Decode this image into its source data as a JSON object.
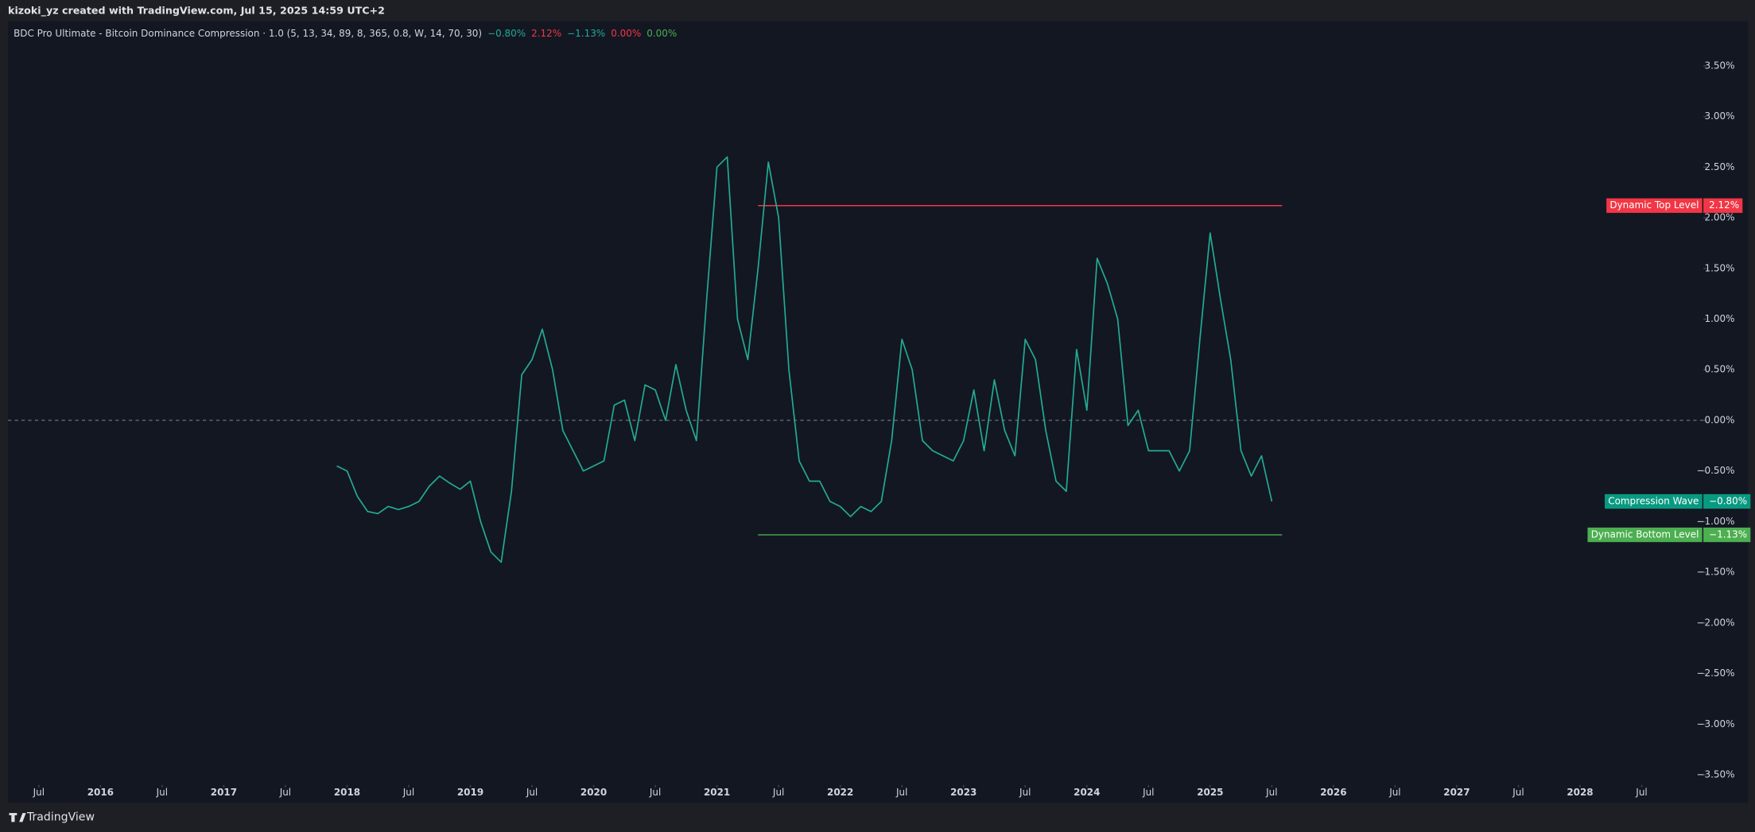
{
  "header": {
    "title": "kizoki_yz created with TradingView.com, Jul 15, 2025 14:59 UTC+2"
  },
  "footer": {
    "brand": "TradingView"
  },
  "chart_data": {
    "type": "line",
    "indicator": "BDC Pro Ultimate - Bitcoin Dominance Compression · 1.0 (5, 13, 34, 89, 8, 365, 0.8, W, 14, 70, 30)",
    "indicator_values": [
      {
        "label": "−0.80%",
        "color": "#22ab94"
      },
      {
        "label": "2.12%",
        "color": "#f23645"
      },
      {
        "label": "−1.13%",
        "color": "#22ab94"
      },
      {
        "label": "0.00%",
        "color": "#f23645"
      },
      {
        "label": "0.00%",
        "color": "#4caf50"
      }
    ],
    "x": [
      "2017-12",
      "2018-01",
      "2018-02",
      "2018-03",
      "2018-04",
      "2018-05",
      "2018-06",
      "2018-07",
      "2018-08",
      "2018-09",
      "2018-10",
      "2018-11",
      "2018-12",
      "2019-01",
      "2019-02",
      "2019-03",
      "2019-04",
      "2019-05",
      "2019-06",
      "2019-07",
      "2019-08",
      "2019-09",
      "2019-10",
      "2019-11",
      "2019-12",
      "2020-01",
      "2020-02",
      "2020-03",
      "2020-04",
      "2020-05",
      "2020-06",
      "2020-07",
      "2020-08",
      "2020-09",
      "2020-10",
      "2020-11",
      "2020-12",
      "2021-01",
      "2021-02",
      "2021-03",
      "2021-04",
      "2021-05",
      "2021-06",
      "2021-07",
      "2021-08",
      "2021-09",
      "2021-10",
      "2021-11",
      "2021-12",
      "2022-01",
      "2022-02",
      "2022-03",
      "2022-04",
      "2022-05",
      "2022-06",
      "2022-07",
      "2022-08",
      "2022-09",
      "2022-10",
      "2022-11",
      "2022-12",
      "2023-01",
      "2023-02",
      "2023-03",
      "2023-04",
      "2023-05",
      "2023-06",
      "2023-07",
      "2023-08",
      "2023-09",
      "2023-10",
      "2023-11",
      "2023-12",
      "2024-01",
      "2024-02",
      "2024-03",
      "2024-04",
      "2024-05",
      "2024-06",
      "2024-07",
      "2024-08",
      "2024-09",
      "2024-10",
      "2024-11",
      "2024-12",
      "2025-01",
      "2025-02",
      "2025-03",
      "2025-04",
      "2025-05",
      "2025-06",
      "2025-07"
    ],
    "series": [
      {
        "name": "Compression Wave",
        "color": "#22ab94",
        "last_label": "−0.80%",
        "values": [
          -0.45,
          -0.5,
          -0.75,
          -0.9,
          -0.92,
          -0.85,
          -0.88,
          -0.85,
          -0.8,
          -0.65,
          -0.55,
          -0.62,
          -0.68,
          -0.6,
          -1.0,
          -1.3,
          -1.4,
          -0.7,
          0.45,
          0.6,
          0.9,
          0.5,
          -0.1,
          -0.3,
          -0.5,
          -0.45,
          -0.4,
          0.15,
          0.2,
          -0.2,
          0.35,
          0.3,
          0.0,
          0.55,
          0.1,
          -0.2,
          1.2,
          2.5,
          2.6,
          1.0,
          0.6,
          1.5,
          2.55,
          2.0,
          0.5,
          -0.4,
          -0.6,
          -0.6,
          -0.8,
          -0.85,
          -0.95,
          -0.85,
          -0.9,
          -0.8,
          -0.2,
          0.8,
          0.5,
          -0.2,
          -0.3,
          -0.35,
          -0.4,
          -0.2,
          0.3,
          -0.3,
          0.4,
          -0.1,
          -0.35,
          0.8,
          0.6,
          -0.1,
          -0.6,
          -0.7,
          0.7,
          0.1,
          1.6,
          1.35,
          1.0,
          -0.05,
          0.1,
          -0.3,
          -0.3,
          -0.3,
          -0.5,
          -0.3,
          0.8,
          1.85,
          1.2,
          0.6,
          -0.3,
          -0.55,
          -0.35,
          -0.8
        ]
      }
    ],
    "levels": [
      {
        "name": "Dynamic Top Level",
        "value": 2.12,
        "label": "2.12%",
        "color": "#f23645",
        "x": [
          "2021-05",
          "2025-08"
        ]
      },
      {
        "name": "Dynamic Bottom Level",
        "value": -1.13,
        "label": "−1.13%",
        "color": "#4caf50",
        "x": [
          "2021-05",
          "2025-08"
        ]
      }
    ],
    "zero_line": {
      "value": 0,
      "style": "dashed"
    },
    "xlim": [
      "2015-04",
      "2029-01"
    ],
    "xticks": [
      {
        "value": "2015-07",
        "label": "Jul"
      },
      {
        "value": "2016-01",
        "label": "2016"
      },
      {
        "value": "2016-07",
        "label": "Jul"
      },
      {
        "value": "2017-01",
        "label": "2017"
      },
      {
        "value": "2017-07",
        "label": "Jul"
      },
      {
        "value": "2018-01",
        "label": "2018"
      },
      {
        "value": "2018-07",
        "label": "Jul"
      },
      {
        "value": "2019-01",
        "label": "2019"
      },
      {
        "value": "2019-07",
        "label": "Jul"
      },
      {
        "value": "2020-01",
        "label": "2020"
      },
      {
        "value": "2020-07",
        "label": "Jul"
      },
      {
        "value": "2021-01",
        "label": "2021"
      },
      {
        "value": "2021-07",
        "label": "Jul"
      },
      {
        "value": "2022-01",
        "label": "2022"
      },
      {
        "value": "2022-07",
        "label": "Jul"
      },
      {
        "value": "2023-01",
        "label": "2023"
      },
      {
        "value": "2023-07",
        "label": "Jul"
      },
      {
        "value": "2024-01",
        "label": "2024"
      },
      {
        "value": "2024-07",
        "label": "Jul"
      },
      {
        "value": "2025-01",
        "label": "2025"
      },
      {
        "value": "2025-07",
        "label": "Jul"
      },
      {
        "value": "2026-01",
        "label": "2026"
      },
      {
        "value": "2026-07",
        "label": "Jul"
      },
      {
        "value": "2027-01",
        "label": "2027"
      },
      {
        "value": "2027-07",
        "label": "Jul"
      },
      {
        "value": "2028-01",
        "label": "2028"
      },
      {
        "value": "2028-07",
        "label": "Jul"
      }
    ],
    "ylim": [
      -3.6,
      3.94
    ],
    "yticks": [
      {
        "value": 3.5,
        "label": "3.50%"
      },
      {
        "value": 3,
        "label": "3.00%"
      },
      {
        "value": 2.5,
        "label": "2.50%"
      },
      {
        "value": 2,
        "label": "2.00%"
      },
      {
        "value": 1.5,
        "label": "1.50%"
      },
      {
        "value": 1,
        "label": "1.00%"
      },
      {
        "value": 0.5,
        "label": "0.50%"
      },
      {
        "value": 0,
        "label": "0.00%"
      },
      {
        "value": -0.5,
        "label": "−0.50%"
      },
      {
        "value": -1,
        "label": "−1.00%"
      },
      {
        "value": -1.5,
        "label": "−1.50%"
      },
      {
        "value": -2,
        "label": "−2.00%"
      },
      {
        "value": -2.5,
        "label": "−2.50%"
      },
      {
        "value": -3,
        "label": "−3.00%"
      },
      {
        "value": -3.5,
        "label": "−3.50%"
      }
    ],
    "grid": false
  }
}
